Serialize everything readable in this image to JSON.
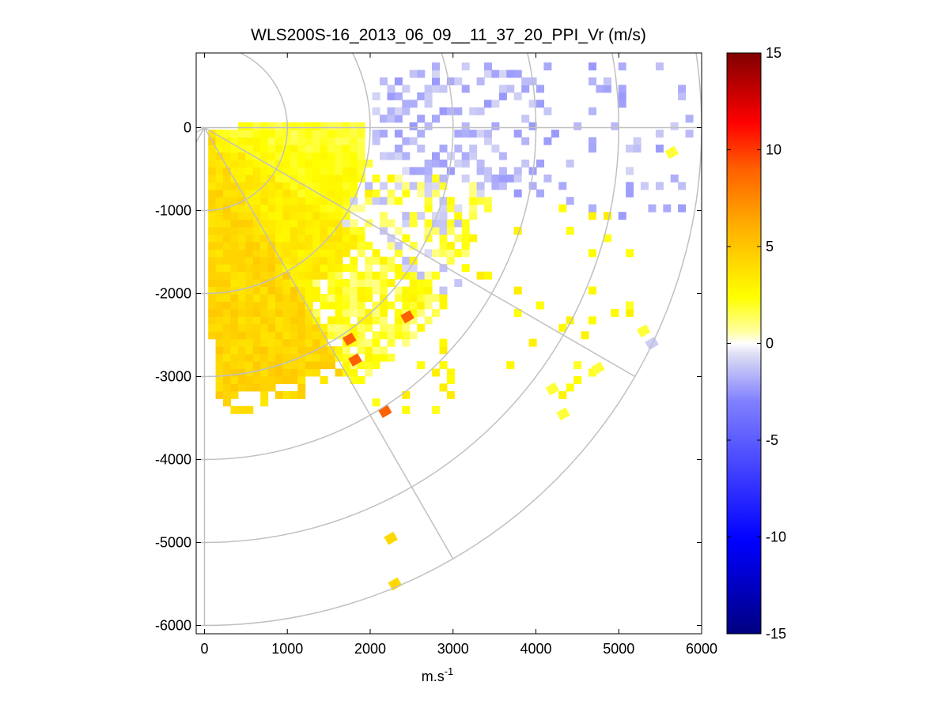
{
  "chart_data": {
    "type": "heatmap",
    "title": "WLS200S-16_2013_06_09__11_37_20_PPI_Vr (m/s)",
    "xlabel_base": "m.s",
    "xlabel_exp": "-1",
    "ylabel": "",
    "xlim": [
      -100,
      6000
    ],
    "ylim": [
      -6100,
      900
    ],
    "x_ticks": [
      "0",
      "1000",
      "2000",
      "3000",
      "4000",
      "5000",
      "6000"
    ],
    "y_ticks": [
      "0",
      "-1000",
      "-2000",
      "-3000",
      "-4000",
      "-5000",
      "-6000"
    ],
    "polar_grid": {
      "origin": [
        0,
        0
      ],
      "range_rings_m": [
        1000,
        2000,
        3000,
        4000,
        5000,
        6000
      ],
      "azimuth_spokes_deg": [
        90,
        120,
        150,
        180,
        210,
        240,
        270
      ]
    },
    "colorbar": {
      "min": -15,
      "max": 15,
      "ticks": [
        "15",
        "10",
        "5",
        "0",
        "-5",
        "-10",
        "-15"
      ],
      "colormap": "blue-white-yellow-red diverging"
    },
    "field_description": "Radial velocity PPI sector: positive (yellow to orange, ~1 to 4 m/s) near the lidar toward south-southeast, weakly negative (light blue, ~-1 to -2 m/s) toward the east, a few isolated strong positive cells (~9 m/s, red)",
    "cells": [
      {
        "x": 2450,
        "y": -2280,
        "v": 9
      },
      {
        "x": 1750,
        "y": -2550,
        "v": 9
      },
      {
        "x": 1820,
        "y": -2800,
        "v": 9
      },
      {
        "x": 2180,
        "y": -3420,
        "v": 9
      },
      {
        "x": 2250,
        "y": -4950,
        "v": 4
      },
      {
        "x": 2300,
        "y": -5500,
        "v": 4
      },
      {
        "x": 4200,
        "y": -3150,
        "v": 1.5
      },
      {
        "x": 4330,
        "y": -3450,
        "v": 1.5
      },
      {
        "x": 4750,
        "y": -2900,
        "v": 1.5
      },
      {
        "x": 5640,
        "y": -300,
        "v": 1.5
      },
      {
        "x": 5300,
        "y": -2450,
        "v": 1.5
      },
      {
        "x": 5400,
        "y": -2600,
        "v": -1
      }
    ]
  }
}
